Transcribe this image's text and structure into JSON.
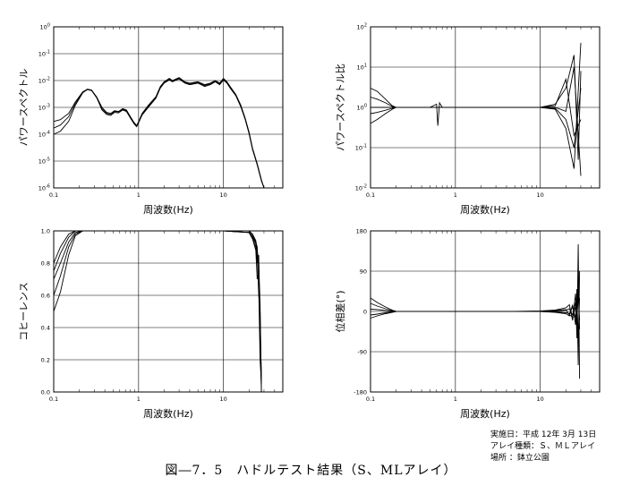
{
  "chart_data": [
    {
      "type": "line",
      "id": "power-spectrum",
      "xlabel": "周波数(Hz)",
      "ylabel": "パワースペクトル",
      "xscale": "log",
      "yscale": "log",
      "xlim": [
        0.1,
        50
      ],
      "ylim": [
        1e-06,
        1
      ],
      "xticks": [
        "0.1",
        "1",
        "10"
      ],
      "yticks": [
        "10^0",
        "10^-1",
        "10^-2",
        "10^-3",
        "10^-4",
        "10^-5",
        "10^-6"
      ],
      "grid": true,
      "series": [
        {
          "x": [
            0.1,
            0.12,
            0.15,
            0.18,
            0.22,
            0.25,
            0.28,
            0.32,
            0.37,
            0.42,
            0.47,
            0.52,
            0.58,
            0.65,
            0.72,
            0.8,
            0.88,
            0.95,
            1.0,
            1.1,
            1.3,
            1.6,
            1.8,
            2.0,
            2.3,
            2.5,
            3.0,
            3.5,
            4,
            5,
            6,
            7,
            8,
            9,
            10,
            11,
            12,
            14,
            16,
            18,
            20,
            22,
            25,
            28,
            30
          ],
          "y": [
            0.0001,
            0.00013,
            0.0003,
            0.0012,
            0.0035,
            0.0047,
            0.0043,
            0.0025,
            0.001,
            0.00065,
            0.0006,
            0.00075,
            0.0007,
            0.0009,
            0.0008,
            0.00045,
            0.00028,
            0.00021,
            0.0003,
            0.0006,
            0.0012,
            0.0025,
            0.006,
            0.009,
            0.012,
            0.01,
            0.013,
            0.009,
            0.008,
            0.009,
            0.007,
            0.008,
            0.01,
            0.008,
            0.012,
            0.009,
            0.006,
            0.003,
            0.0012,
            0.0004,
            0.00012,
            3e-05,
            8e-06,
            2e-06,
            1e-06
          ]
        },
        {
          "x": [
            0.1,
            0.12,
            0.15,
            0.18,
            0.22,
            0.25,
            0.28,
            0.32,
            0.37,
            0.42,
            0.47,
            0.52,
            0.58,
            0.65,
            0.72,
            0.8,
            0.88,
            0.95,
            1.0,
            1.1,
            1.3,
            1.6,
            1.8,
            2.0,
            2.3,
            2.5,
            3.0,
            3.5,
            4,
            5,
            6,
            7,
            8,
            9,
            10,
            11,
            12,
            14,
            16,
            18,
            20,
            22,
            25,
            28,
            30
          ],
          "y": [
            0.00017,
            0.00022,
            0.00045,
            0.0014,
            0.0036,
            0.0046,
            0.0042,
            0.0023,
            0.0009,
            0.0006,
            0.00055,
            0.0007,
            0.00068,
            0.00085,
            0.00075,
            0.00042,
            0.00026,
            0.0002,
            0.00028,
            0.00055,
            0.0011,
            0.0023,
            0.0055,
            0.0085,
            0.011,
            0.0095,
            0.012,
            0.0085,
            0.0075,
            0.0085,
            0.0065,
            0.0075,
            0.0095,
            0.0075,
            0.011,
            0.0085,
            0.0055,
            0.0028,
            0.0011,
            0.00038,
            0.00011,
            2.8e-05,
            7.5e-06,
            1.9e-06,
            1e-06
          ]
        },
        {
          "x": [
            0.1,
            0.12,
            0.15,
            0.18,
            0.22,
            0.25,
            0.28,
            0.32,
            0.37,
            0.42,
            0.47,
            0.52,
            0.58,
            0.65,
            0.72,
            0.8,
            0.88,
            0.95,
            1.0,
            1.1,
            1.3,
            1.6,
            1.8,
            2.0,
            2.3,
            2.5,
            3.0,
            3.5,
            4,
            5,
            6,
            7,
            8,
            9,
            10,
            11,
            12,
            14,
            16,
            18,
            20,
            22,
            25,
            28,
            30
          ],
          "y": [
            0.0003,
            0.00035,
            0.0006,
            0.0016,
            0.0038,
            0.0048,
            0.0044,
            0.0024,
            0.0008,
            0.00055,
            0.0005,
            0.00065,
            0.00062,
            0.0008,
            0.0007,
            0.0004,
            0.00025,
            0.00019,
            0.00027,
            0.00052,
            0.001,
            0.0022,
            0.0052,
            0.008,
            0.0105,
            0.009,
            0.0115,
            0.008,
            0.007,
            0.008,
            0.006,
            0.007,
            0.009,
            0.007,
            0.0105,
            0.008,
            0.0052,
            0.0027,
            0.00105,
            0.00036,
            0.000105,
            2.7e-05,
            7.2e-06,
            1.8e-06,
            1e-06
          ]
        }
      ]
    },
    {
      "type": "line",
      "id": "power-spectrum-ratio",
      "xlabel": "周波数(Hz)",
      "ylabel": "パワースペクトル比",
      "xscale": "log",
      "yscale": "log",
      "xlim": [
        0.1,
        50
      ],
      "ylim": [
        0.01,
        100
      ],
      "xticks": [
        "0.1",
        "1",
        "10"
      ],
      "yticks": [
        "10^2",
        "10^1",
        "10^0",
        "10^-1",
        "10^-2"
      ],
      "grid": true,
      "series": [
        {
          "x": [
            0.1,
            0.12,
            0.15,
            0.18,
            0.2,
            0.3,
            0.5,
            0.6,
            0.62,
            0.65,
            0.7,
            1,
            2,
            5,
            10,
            15,
            20,
            25,
            28,
            30
          ],
          "y": [
            3,
            2.5,
            1.6,
            1.1,
            1,
            1,
            1,
            1.2,
            0.35,
            1.3,
            1,
            1,
            1,
            1,
            1,
            1.2,
            3,
            20,
            0.05,
            8
          ]
        },
        {
          "x": [
            0.1,
            0.12,
            0.15,
            0.18,
            0.2,
            0.3,
            0.5,
            1,
            2,
            5,
            10,
            15,
            20,
            25,
            30
          ],
          "y": [
            1.8,
            1.6,
            1.3,
            1.05,
            1,
            1,
            1,
            1,
            1,
            1,
            1,
            0.9,
            0.3,
            0.03,
            40
          ]
        },
        {
          "x": [
            0.1,
            0.12,
            0.15,
            0.18,
            0.2,
            0.3,
            0.5,
            1,
            2,
            5,
            10,
            15,
            20,
            25,
            30
          ],
          "y": [
            1,
            1,
            1,
            1,
            1,
            1,
            1,
            1,
            1,
            1,
            1,
            1.1,
            5,
            0.2,
            0.5
          ]
        },
        {
          "x": [
            0.1,
            0.12,
            0.15,
            0.18,
            0.2,
            0.3,
            0.5,
            1,
            2,
            5,
            10,
            15,
            20,
            25,
            30
          ],
          "y": [
            0.7,
            0.75,
            0.85,
            0.95,
            1,
            1,
            1,
            1,
            1,
            1,
            1,
            1,
            0.8,
            10,
            0.02
          ]
        },
        {
          "x": [
            0.1,
            0.12,
            0.15,
            0.18,
            0.2,
            0.3,
            0.5,
            1,
            2,
            5,
            10,
            15,
            20,
            25,
            30
          ],
          "y": [
            0.4,
            0.5,
            0.7,
            0.9,
            1,
            1,
            1,
            1,
            1,
            1,
            1,
            0.95,
            0.5,
            0.1,
            3
          ]
        }
      ]
    },
    {
      "type": "line",
      "id": "coherence",
      "xlabel": "周波数(Hz)",
      "ylabel": "コヒーレンス",
      "xscale": "log",
      "yscale": "linear",
      "xlim": [
        0.1,
        50
      ],
      "ylim": [
        0,
        1
      ],
      "xticks": [
        "0.1",
        "1",
        "10"
      ],
      "yticks": [
        "1.0",
        "0.8",
        "0.6",
        "0.4",
        "0.2",
        "0.0"
      ],
      "grid": true,
      "series": [
        {
          "x": [
            0.1,
            0.12,
            0.15,
            0.18,
            0.22,
            0.3,
            1,
            10,
            20,
            22,
            24,
            25,
            26,
            27,
            28
          ],
          "y": [
            0.5,
            0.62,
            0.85,
            0.97,
            1,
            1,
            1,
            1,
            0.99,
            0.95,
            0.9,
            0.8,
            0.85,
            0.3,
            0.0
          ]
        },
        {
          "x": [
            0.1,
            0.12,
            0.15,
            0.18,
            0.22,
            0.3,
            1,
            10,
            20,
            22,
            24,
            25,
            26,
            27,
            28
          ],
          "y": [
            0.6,
            0.72,
            0.9,
            0.98,
            1,
            1,
            1,
            1,
            0.99,
            0.96,
            0.92,
            0.85,
            0.6,
            0.5,
            0.05
          ]
        },
        {
          "x": [
            0.1,
            0.12,
            0.15,
            0.18,
            0.22,
            0.3,
            1,
            10,
            20,
            22,
            24,
            25,
            26,
            27,
            28
          ],
          "y": [
            0.7,
            0.8,
            0.93,
            0.99,
            1,
            1,
            1,
            1,
            0.99,
            0.95,
            0.88,
            0.7,
            0.75,
            0.4,
            0.1
          ]
        },
        {
          "x": [
            0.1,
            0.12,
            0.15,
            0.18,
            0.22,
            0.3,
            1,
            10,
            20,
            22,
            24,
            25,
            26,
            27,
            28
          ],
          "y": [
            0.75,
            0.86,
            0.96,
            1,
            1,
            1,
            1,
            1,
            1,
            0.97,
            0.93,
            0.9,
            0.65,
            0.2,
            0.05
          ]
        },
        {
          "x": [
            0.1,
            0.12,
            0.15,
            0.18,
            0.22,
            0.3,
            1,
            10,
            20,
            22,
            24,
            25,
            26,
            27,
            28
          ],
          "y": [
            0.8,
            0.9,
            0.98,
            1,
            1,
            1,
            1,
            1,
            1,
            0.98,
            0.94,
            0.88,
            0.8,
            0.55,
            0.0
          ]
        }
      ]
    },
    {
      "type": "line",
      "id": "phase-difference",
      "xlabel": "周波数(Hz)",
      "ylabel": "位相差(°)",
      "xscale": "log",
      "yscale": "linear",
      "xlim": [
        0.1,
        50
      ],
      "ylim": [
        -180,
        180
      ],
      "xticks": [
        "0.1",
        "1",
        "10"
      ],
      "yticks": [
        "180",
        "90",
        "0",
        "-90",
        "-180"
      ],
      "grid": true,
      "series": [
        {
          "x": [
            0.1,
            0.12,
            0.15,
            0.18,
            0.2,
            0.3,
            1,
            5,
            10,
            15,
            20,
            22,
            24,
            26,
            27,
            28,
            29
          ],
          "y": [
            30,
            20,
            10,
            3,
            0,
            0,
            0,
            0,
            1,
            3,
            8,
            15,
            -20,
            40,
            -60,
            150,
            -150
          ]
        },
        {
          "x": [
            0.1,
            0.12,
            0.15,
            0.18,
            0.2,
            0.3,
            1,
            5,
            10,
            15,
            20,
            22,
            24,
            26,
            27,
            28,
            29
          ],
          "y": [
            18,
            12,
            6,
            2,
            0,
            0,
            0,
            0,
            0,
            -2,
            -5,
            -10,
            15,
            -30,
            50,
            -120,
            90
          ]
        },
        {
          "x": [
            0.1,
            0.12,
            0.15,
            0.18,
            0.2,
            0.3,
            1,
            5,
            10,
            15,
            20,
            22,
            24,
            26,
            27,
            28,
            29
          ],
          "y": [
            5,
            4,
            2,
            1,
            0,
            0,
            0,
            0,
            0,
            1,
            3,
            6,
            -8,
            20,
            -35,
            80,
            -40
          ]
        },
        {
          "x": [
            0.1,
            0.12,
            0.15,
            0.18,
            0.2,
            0.3,
            1,
            5,
            10,
            15,
            20,
            22,
            24,
            26,
            27,
            28,
            29
          ],
          "y": [
            -8,
            -6,
            -3,
            -1,
            0,
            0,
            0,
            0,
            0,
            -1,
            -3,
            -5,
            10,
            -15,
            25,
            -60,
            30
          ]
        },
        {
          "x": [
            0.1,
            0.12,
            0.15,
            0.18,
            0.2,
            0.3,
            1,
            5,
            10,
            15,
            20,
            22,
            24,
            26,
            27,
            28,
            29
          ],
          "y": [
            -15,
            -10,
            -5,
            -2,
            0,
            0,
            0,
            0,
            0,
            2,
            4,
            -8,
            -12,
            10,
            -20,
            40,
            -20
          ]
        }
      ]
    }
  ],
  "notes": {
    "line1": "実施日：平成 12年 3月 13日",
    "line2": "アレイ種類：Ｓ、ＭＬアレイ",
    "line3": "場所  ：鉢立公園"
  },
  "caption": "図―7．5　ハドルテスト結果（S、MLアレイ）"
}
